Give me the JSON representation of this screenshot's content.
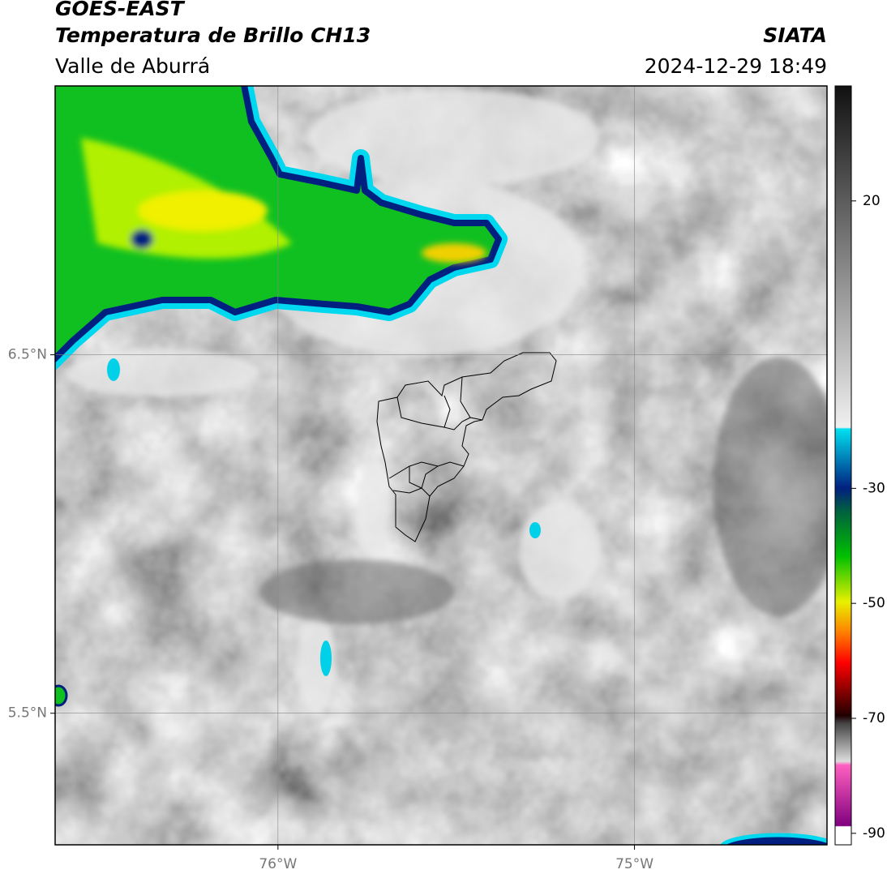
{
  "header": {
    "title": "GOES-EAST",
    "subtitle": "Temperatura de Brillo CH13",
    "region": "Valle de Aburrá",
    "source": "SIATA",
    "datetime": "2024-12-29 18:49"
  },
  "map": {
    "xlim": [
      -76.625,
      -74.46
    ],
    "ylim": [
      5.133,
      7.25
    ],
    "xticks": [
      {
        "value": -76,
        "label": "76°W"
      },
      {
        "value": -75,
        "label": "75°W"
      }
    ],
    "yticks": [
      {
        "value": 6.5,
        "label": "6.5°N"
      },
      {
        "value": 5.5,
        "label": "5.5°N"
      }
    ],
    "grid": true
  },
  "colorbar": {
    "lim": [
      -92,
      40
    ],
    "ticks": [
      20,
      -30,
      -50,
      -70,
      -90
    ]
  }
}
